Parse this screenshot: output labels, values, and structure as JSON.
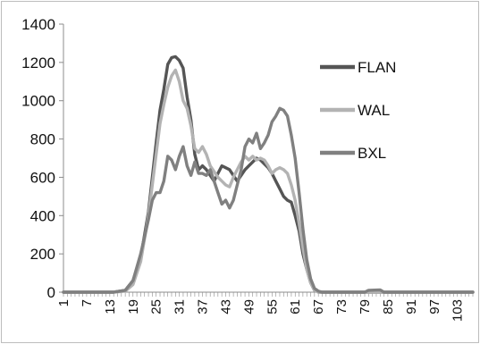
{
  "chart_data": {
    "type": "line",
    "title": "",
    "xlabel": "",
    "ylabel": "",
    "ylim": [
      0,
      1400
    ],
    "xlim": [
      1,
      107
    ],
    "yticks": [
      0,
      200,
      400,
      600,
      800,
      1000,
      1200,
      1400
    ],
    "xticks": [
      1,
      7,
      13,
      19,
      25,
      31,
      37,
      43,
      49,
      55,
      61,
      67,
      73,
      79,
      85,
      91,
      97,
      103
    ],
    "grid": false,
    "legend": "right",
    "series": [
      {
        "name": "FLAN",
        "color": "#555555",
        "points": [
          [
            1,
            0
          ],
          [
            14,
            0
          ],
          [
            17,
            10
          ],
          [
            19,
            60
          ],
          [
            21,
            180
          ],
          [
            23,
            420
          ],
          [
            25,
            780
          ],
          [
            26,
            950
          ],
          [
            27,
            1060
          ],
          [
            28,
            1190
          ],
          [
            29,
            1225
          ],
          [
            30,
            1230
          ],
          [
            31,
            1210
          ],
          [
            32,
            1170
          ],
          [
            33,
            1020
          ],
          [
            34,
            900
          ],
          [
            35,
            720
          ],
          [
            36,
            640
          ],
          [
            37,
            660
          ],
          [
            38,
            640
          ],
          [
            39,
            610
          ],
          [
            40,
            580
          ],
          [
            41,
            620
          ],
          [
            42,
            660
          ],
          [
            43,
            650
          ],
          [
            44,
            640
          ],
          [
            45,
            610
          ],
          [
            46,
            580
          ],
          [
            47,
            610
          ],
          [
            48,
            640
          ],
          [
            49,
            660
          ],
          [
            50,
            680
          ],
          [
            51,
            700
          ],
          [
            52,
            690
          ],
          [
            53,
            670
          ],
          [
            54,
            650
          ],
          [
            55,
            620
          ],
          [
            56,
            580
          ],
          [
            57,
            540
          ],
          [
            58,
            500
          ],
          [
            59,
            480
          ],
          [
            60,
            470
          ],
          [
            61,
            400
          ],
          [
            62,
            320
          ],
          [
            63,
            200
          ],
          [
            64,
            120
          ],
          [
            65,
            50
          ],
          [
            66,
            10
          ],
          [
            67,
            0
          ],
          [
            107,
            0
          ]
        ]
      },
      {
        "name": "WAL",
        "color": "#b3b3b3",
        "points": [
          [
            1,
            0
          ],
          [
            14,
            0
          ],
          [
            17,
            5
          ],
          [
            19,
            40
          ],
          [
            21,
            160
          ],
          [
            23,
            400
          ],
          [
            25,
            720
          ],
          [
            26,
            880
          ],
          [
            27,
            980
          ],
          [
            28,
            1070
          ],
          [
            29,
            1130
          ],
          [
            30,
            1160
          ],
          [
            31,
            1100
          ],
          [
            32,
            1000
          ],
          [
            33,
            960
          ],
          [
            34,
            870
          ],
          [
            35,
            750
          ],
          [
            36,
            730
          ],
          [
            37,
            760
          ],
          [
            38,
            720
          ],
          [
            39,
            660
          ],
          [
            40,
            630
          ],
          [
            41,
            600
          ],
          [
            42,
            580
          ],
          [
            43,
            560
          ],
          [
            44,
            550
          ],
          [
            45,
            600
          ],
          [
            46,
            640
          ],
          [
            47,
            680
          ],
          [
            48,
            710
          ],
          [
            49,
            690
          ],
          [
            50,
            710
          ],
          [
            51,
            690
          ],
          [
            52,
            700
          ],
          [
            53,
            690
          ],
          [
            54,
            660
          ],
          [
            55,
            620
          ],
          [
            56,
            640
          ],
          [
            57,
            650
          ],
          [
            58,
            640
          ],
          [
            59,
            620
          ],
          [
            60,
            560
          ],
          [
            61,
            480
          ],
          [
            62,
            360
          ],
          [
            63,
            230
          ],
          [
            64,
            120
          ],
          [
            65,
            50
          ],
          [
            66,
            10
          ],
          [
            67,
            0
          ],
          [
            107,
            0
          ]
        ]
      },
      {
        "name": "BXL",
        "color": "#808080",
        "points": [
          [
            1,
            0
          ],
          [
            14,
            0
          ],
          [
            17,
            10
          ],
          [
            19,
            60
          ],
          [
            21,
            200
          ],
          [
            23,
            380
          ],
          [
            24,
            480
          ],
          [
            25,
            520
          ],
          [
            26,
            520
          ],
          [
            27,
            580
          ],
          [
            28,
            710
          ],
          [
            29,
            690
          ],
          [
            30,
            640
          ],
          [
            31,
            710
          ],
          [
            32,
            760
          ],
          [
            33,
            660
          ],
          [
            34,
            610
          ],
          [
            35,
            680
          ],
          [
            36,
            620
          ],
          [
            37,
            620
          ],
          [
            38,
            610
          ],
          [
            39,
            640
          ],
          [
            40,
            580
          ],
          [
            41,
            520
          ],
          [
            42,
            460
          ],
          [
            43,
            480
          ],
          [
            44,
            440
          ],
          [
            45,
            480
          ],
          [
            46,
            560
          ],
          [
            47,
            640
          ],
          [
            48,
            760
          ],
          [
            49,
            800
          ],
          [
            50,
            780
          ],
          [
            51,
            830
          ],
          [
            52,
            750
          ],
          [
            53,
            780
          ],
          [
            54,
            820
          ],
          [
            55,
            890
          ],
          [
            56,
            920
          ],
          [
            57,
            960
          ],
          [
            58,
            950
          ],
          [
            59,
            920
          ],
          [
            60,
            820
          ],
          [
            61,
            700
          ],
          [
            62,
            520
          ],
          [
            63,
            330
          ],
          [
            64,
            170
          ],
          [
            65,
            70
          ],
          [
            66,
            20
          ],
          [
            67,
            5
          ],
          [
            68,
            0
          ],
          [
            79,
            0
          ],
          [
            80,
            10
          ],
          [
            83,
            12
          ],
          [
            84,
            0
          ],
          [
            107,
            0
          ]
        ]
      }
    ]
  }
}
